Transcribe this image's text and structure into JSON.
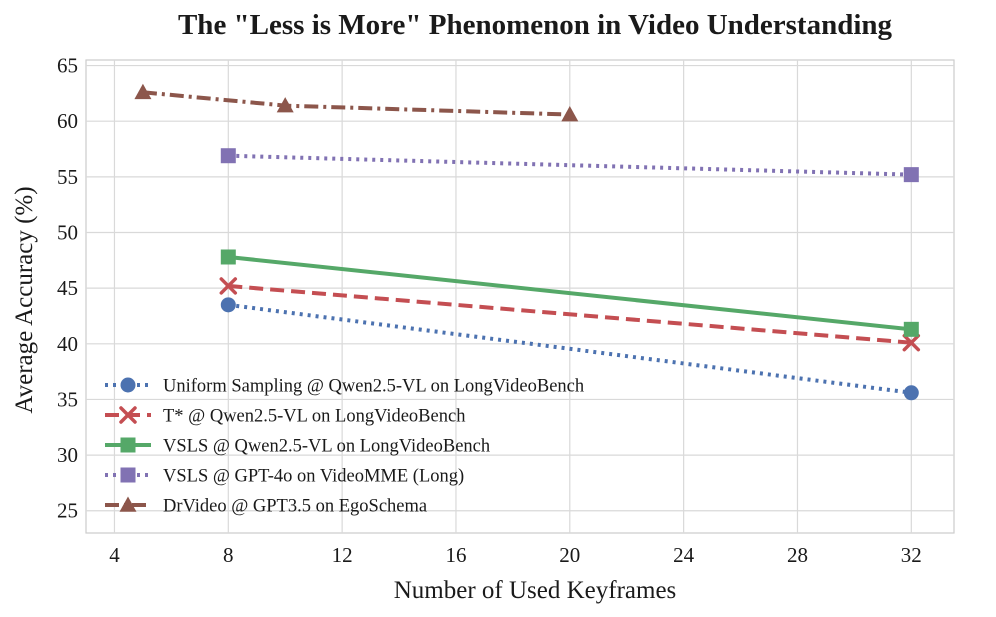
{
  "chart_data": {
    "type": "line",
    "title": "The \"Less is More\" Phenomenon in Video Understanding",
    "xlabel": "Number of Used Keyframes",
    "ylabel": "Average Accuracy (%)",
    "xlim": [
      3,
      33.5
    ],
    "ylim": [
      23,
      65.5
    ],
    "xticks": [
      4,
      8,
      12,
      16,
      20,
      24,
      28,
      32
    ],
    "yticks": [
      25,
      30,
      35,
      40,
      45,
      50,
      55,
      60,
      65
    ],
    "grid": true,
    "legend_position": "lower-left",
    "series": [
      {
        "name": "Uniform Sampling @ Qwen2.5-VL on LongVideoBench",
        "x": [
          8,
          32
        ],
        "y": [
          43.5,
          35.6
        ],
        "color": "#4C72B0",
        "linestyle": "dotted",
        "marker": "circle"
      },
      {
        "name": "T* @ Qwen2.5-VL on LongVideoBench",
        "x": [
          8,
          32
        ],
        "y": [
          45.2,
          40.1
        ],
        "color": "#C44E52",
        "linestyle": "dashed",
        "marker": "x"
      },
      {
        "name": "VSLS @ Qwen2.5-VL on LongVideoBench",
        "x": [
          8,
          32
        ],
        "y": [
          47.8,
          41.3
        ],
        "color": "#55A868",
        "linestyle": "solid",
        "marker": "square"
      },
      {
        "name": "VSLS @ GPT-4o on VideoMME (Long)",
        "x": [
          8,
          32
        ],
        "y": [
          56.9,
          55.2
        ],
        "color": "#8172B3",
        "linestyle": "dotted",
        "marker": "square"
      },
      {
        "name": "DrVideo @ GPT3.5 on EgoSchema",
        "x": [
          5,
          10,
          20
        ],
        "y": [
          62.6,
          61.4,
          60.6
        ],
        "color": "#8C564B",
        "linestyle": "dashdot",
        "marker": "triangle"
      }
    ]
  }
}
